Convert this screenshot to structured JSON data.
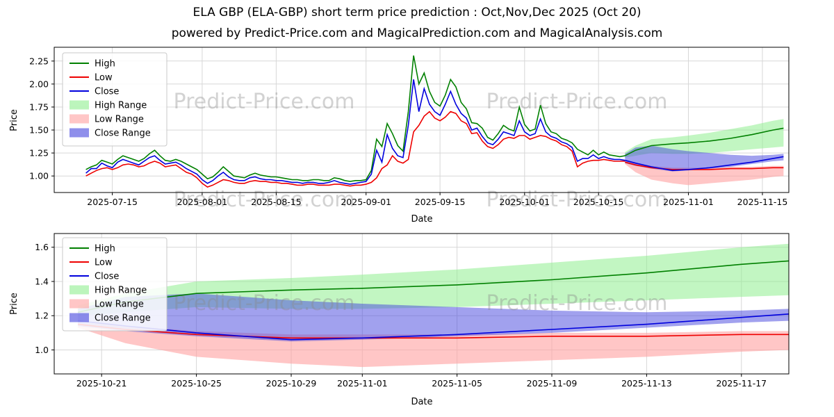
{
  "page": {
    "title": "ELA GBP (ELA-GBP) short term price prediction : Oct,Nov,Dec 2025 (Oct 20)",
    "subtitle": "powered by Predict-Price.com and MagicalPrediction.com and MagicalAnalysis.com"
  },
  "watermark": "Predict-Price.com",
  "colors": {
    "high": "#008000",
    "low": "#ee0000",
    "close": "#0000dd",
    "high_range": "#90ee90",
    "low_range": "#ffa0a0",
    "close_range": "#4444dd"
  },
  "chart_data": [
    {
      "type": "line",
      "title": "",
      "xlabel": "Date",
      "ylabel": "Price",
      "xlim": [
        "2025-07-04",
        "2025-11-20"
      ],
      "ylim": [
        0.82,
        2.4
      ],
      "grid": true,
      "legend_position": "upper-left",
      "xticks": [
        "2025-07-15",
        "2025-08-01",
        "2025-08-15",
        "2025-09-01",
        "2025-09-15",
        "2025-10-01",
        "2025-10-15",
        "2025-11-01",
        "2025-11-15"
      ],
      "yticks": [
        "1.00",
        "1.25",
        "1.50",
        "1.75",
        "2.00",
        "2.25"
      ],
      "legend": [
        {
          "label": "High",
          "type": "line",
          "color": "high"
        },
        {
          "label": "Low",
          "type": "line",
          "color": "low"
        },
        {
          "label": "Close",
          "type": "line",
          "color": "close"
        },
        {
          "label": "High Range",
          "type": "patch",
          "color": "high_range"
        },
        {
          "label": "Low Range",
          "type": "patch",
          "color": "low_range"
        },
        {
          "label": "Close Range",
          "type": "patch",
          "color": "close_range"
        }
      ],
      "history": {
        "dates": [
          "2025-07-10",
          "2025-07-11",
          "2025-07-12",
          "2025-07-13",
          "2025-07-14",
          "2025-07-15",
          "2025-07-16",
          "2025-07-17",
          "2025-07-18",
          "2025-07-19",
          "2025-07-20",
          "2025-07-21",
          "2025-07-22",
          "2025-07-23",
          "2025-07-24",
          "2025-07-25",
          "2025-07-26",
          "2025-07-27",
          "2025-07-28",
          "2025-07-29",
          "2025-07-30",
          "2025-07-31",
          "2025-08-01",
          "2025-08-02",
          "2025-08-03",
          "2025-08-04",
          "2025-08-05",
          "2025-08-06",
          "2025-08-07",
          "2025-08-08",
          "2025-08-09",
          "2025-08-10",
          "2025-08-11",
          "2025-08-12",
          "2025-08-13",
          "2025-08-14",
          "2025-08-15",
          "2025-08-16",
          "2025-08-17",
          "2025-08-18",
          "2025-08-19",
          "2025-08-20",
          "2025-08-21",
          "2025-08-22",
          "2025-08-23",
          "2025-08-24",
          "2025-08-25",
          "2025-08-26",
          "2025-08-27",
          "2025-08-28",
          "2025-08-29",
          "2025-08-30",
          "2025-08-31",
          "2025-09-01",
          "2025-09-02",
          "2025-09-03",
          "2025-09-04",
          "2025-09-05",
          "2025-09-06",
          "2025-09-07",
          "2025-09-08",
          "2025-09-09",
          "2025-09-10",
          "2025-09-11",
          "2025-09-12",
          "2025-09-13",
          "2025-09-14",
          "2025-09-15",
          "2025-09-16",
          "2025-09-17",
          "2025-09-18",
          "2025-09-19",
          "2025-09-20",
          "2025-09-21",
          "2025-09-22",
          "2025-09-23",
          "2025-09-24",
          "2025-09-25",
          "2025-09-26",
          "2025-09-27",
          "2025-09-28",
          "2025-09-29",
          "2025-09-30",
          "2025-10-01",
          "2025-10-02",
          "2025-10-03",
          "2025-10-04",
          "2025-10-05",
          "2025-10-06",
          "2025-10-07",
          "2025-10-08",
          "2025-10-09",
          "2025-10-10",
          "2025-10-11",
          "2025-10-12",
          "2025-10-13",
          "2025-10-14",
          "2025-10-15",
          "2025-10-16",
          "2025-10-17",
          "2025-10-18",
          "2025-10-19",
          "2025-10-20"
        ],
        "high": [
          1.07,
          1.1,
          1.12,
          1.17,
          1.15,
          1.13,
          1.18,
          1.22,
          1.2,
          1.18,
          1.16,
          1.19,
          1.24,
          1.28,
          1.22,
          1.17,
          1.16,
          1.18,
          1.16,
          1.13,
          1.1,
          1.07,
          1.02,
          0.97,
          0.99,
          1.04,
          1.1,
          1.05,
          1.0,
          0.99,
          0.98,
          1.01,
          1.03,
          1.01,
          1.0,
          0.99,
          0.99,
          0.98,
          0.97,
          0.96,
          0.96,
          0.95,
          0.95,
          0.96,
          0.96,
          0.95,
          0.95,
          0.98,
          0.97,
          0.95,
          0.94,
          0.95,
          0.95,
          0.96,
          1.06,
          1.4,
          1.32,
          1.57,
          1.46,
          1.33,
          1.27,
          1.7,
          2.31,
          2.0,
          2.12,
          1.92,
          1.8,
          1.76,
          1.88,
          2.05,
          1.97,
          1.8,
          1.73,
          1.58,
          1.57,
          1.52,
          1.42,
          1.39,
          1.46,
          1.55,
          1.51,
          1.49,
          1.75,
          1.56,
          1.49,
          1.51,
          1.77,
          1.57,
          1.48,
          1.46,
          1.41,
          1.39,
          1.36,
          1.29,
          1.26,
          1.23,
          1.28,
          1.23,
          1.26,
          1.23,
          1.22,
          1.21,
          1.22
        ],
        "low": [
          1.0,
          1.03,
          1.06,
          1.08,
          1.09,
          1.07,
          1.09,
          1.12,
          1.13,
          1.12,
          1.1,
          1.11,
          1.14,
          1.16,
          1.14,
          1.1,
          1.11,
          1.12,
          1.08,
          1.04,
          1.02,
          0.98,
          0.92,
          0.88,
          0.9,
          0.93,
          0.96,
          0.95,
          0.93,
          0.92,
          0.92,
          0.94,
          0.95,
          0.94,
          0.94,
          0.93,
          0.93,
          0.92,
          0.92,
          0.91,
          0.9,
          0.9,
          0.91,
          0.91,
          0.9,
          0.9,
          0.9,
          0.91,
          0.91,
          0.9,
          0.89,
          0.9,
          0.9,
          0.91,
          0.93,
          0.98,
          1.08,
          1.12,
          1.22,
          1.16,
          1.14,
          1.18,
          1.48,
          1.55,
          1.65,
          1.7,
          1.63,
          1.6,
          1.64,
          1.7,
          1.68,
          1.6,
          1.57,
          1.46,
          1.47,
          1.38,
          1.32,
          1.3,
          1.34,
          1.4,
          1.42,
          1.41,
          1.44,
          1.44,
          1.4,
          1.42,
          1.44,
          1.43,
          1.4,
          1.38,
          1.34,
          1.32,
          1.27,
          1.1,
          1.14,
          1.16,
          1.17,
          1.17,
          1.18,
          1.17,
          1.16,
          1.16,
          1.16
        ],
        "close": [
          1.03,
          1.08,
          1.08,
          1.14,
          1.11,
          1.09,
          1.15,
          1.18,
          1.16,
          1.14,
          1.12,
          1.16,
          1.2,
          1.22,
          1.17,
          1.13,
          1.14,
          1.15,
          1.12,
          1.08,
          1.05,
          1.02,
          0.96,
          0.92,
          0.95,
          1.0,
          1.04,
          0.99,
          0.96,
          0.95,
          0.95,
          0.98,
          0.99,
          0.97,
          0.96,
          0.96,
          0.95,
          0.95,
          0.94,
          0.93,
          0.93,
          0.92,
          0.93,
          0.93,
          0.92,
          0.92,
          0.93,
          0.95,
          0.93,
          0.92,
          0.91,
          0.92,
          0.93,
          0.94,
          1.02,
          1.28,
          1.15,
          1.45,
          1.3,
          1.22,
          1.2,
          1.55,
          2.05,
          1.7,
          1.95,
          1.78,
          1.7,
          1.66,
          1.78,
          1.92,
          1.78,
          1.68,
          1.63,
          1.5,
          1.52,
          1.43,
          1.36,
          1.34,
          1.4,
          1.48,
          1.46,
          1.44,
          1.6,
          1.48,
          1.44,
          1.46,
          1.62,
          1.48,
          1.43,
          1.41,
          1.37,
          1.35,
          1.31,
          1.16,
          1.19,
          1.19,
          1.23,
          1.19,
          1.21,
          1.19,
          1.18,
          1.18,
          1.17
        ]
      },
      "forecast": {
        "dates": [
          "2025-10-20",
          "2025-10-22",
          "2025-10-25",
          "2025-10-29",
          "2025-11-01",
          "2025-11-05",
          "2025-11-09",
          "2025-11-13",
          "2025-11-17",
          "2025-11-19"
        ],
        "high": [
          1.22,
          1.28,
          1.33,
          1.35,
          1.36,
          1.38,
          1.41,
          1.45,
          1.5,
          1.52
        ],
        "high_upper": [
          1.26,
          1.33,
          1.4,
          1.42,
          1.44,
          1.47,
          1.51,
          1.55,
          1.6,
          1.62
        ],
        "high_lower": [
          1.2,
          1.22,
          1.25,
          1.24,
          1.24,
          1.25,
          1.27,
          1.29,
          1.31,
          1.32
        ],
        "close": [
          1.17,
          1.14,
          1.1,
          1.06,
          1.07,
          1.09,
          1.12,
          1.15,
          1.19,
          1.21
        ],
        "close_upper": [
          1.24,
          1.31,
          1.33,
          1.29,
          1.27,
          1.25,
          1.23,
          1.22,
          1.23,
          1.24
        ],
        "close_lower": [
          1.14,
          1.11,
          1.08,
          1.05,
          1.06,
          1.08,
          1.1,
          1.13,
          1.16,
          1.17
        ],
        "low": [
          1.15,
          1.12,
          1.09,
          1.07,
          1.07,
          1.07,
          1.08,
          1.08,
          1.09,
          1.09
        ],
        "low_upper": [
          1.16,
          1.14,
          1.11,
          1.09,
          1.09,
          1.09,
          1.1,
          1.1,
          1.11,
          1.11
        ],
        "low_lower": [
          1.13,
          1.04,
          0.96,
          0.92,
          0.9,
          0.92,
          0.94,
          0.96,
          0.99,
          1.0
        ]
      }
    },
    {
      "type": "line",
      "title": "",
      "xlabel": "Date",
      "ylabel": "Price",
      "xlim": [
        "2025-10-19",
        "2025-11-19"
      ],
      "ylim": [
        0.86,
        1.68
      ],
      "grid": true,
      "legend_position": "upper-left",
      "xticks": [
        "2025-10-21",
        "2025-10-25",
        "2025-10-29",
        "2025-11-01",
        "2025-11-05",
        "2025-11-09",
        "2025-11-13",
        "2025-11-17"
      ],
      "yticks": [
        "1.0",
        "1.2",
        "1.4",
        "1.6"
      ],
      "legend": [
        {
          "label": "High",
          "type": "line",
          "color": "high"
        },
        {
          "label": "Low",
          "type": "line",
          "color": "low"
        },
        {
          "label": "Close",
          "type": "line",
          "color": "close"
        },
        {
          "label": "High Range",
          "type": "patch",
          "color": "high_range"
        },
        {
          "label": "Low Range",
          "type": "patch",
          "color": "low_range"
        },
        {
          "label": "Close Range",
          "type": "patch",
          "color": "close_range"
        }
      ],
      "forecast": {
        "dates": [
          "2025-10-20",
          "2025-10-22",
          "2025-10-25",
          "2025-10-29",
          "2025-11-01",
          "2025-11-05",
          "2025-11-09",
          "2025-11-13",
          "2025-11-17",
          "2025-11-19"
        ],
        "high": [
          1.22,
          1.28,
          1.33,
          1.35,
          1.36,
          1.38,
          1.41,
          1.45,
          1.5,
          1.52
        ],
        "high_upper": [
          1.26,
          1.33,
          1.4,
          1.42,
          1.44,
          1.47,
          1.51,
          1.55,
          1.6,
          1.62
        ],
        "high_lower": [
          1.2,
          1.22,
          1.25,
          1.24,
          1.24,
          1.25,
          1.27,
          1.29,
          1.31,
          1.32
        ],
        "close": [
          1.17,
          1.14,
          1.1,
          1.06,
          1.07,
          1.09,
          1.12,
          1.15,
          1.19,
          1.21
        ],
        "close_upper": [
          1.24,
          1.31,
          1.33,
          1.29,
          1.27,
          1.25,
          1.23,
          1.22,
          1.23,
          1.24
        ],
        "close_lower": [
          1.14,
          1.11,
          1.08,
          1.05,
          1.06,
          1.08,
          1.1,
          1.13,
          1.16,
          1.17
        ],
        "low": [
          1.15,
          1.12,
          1.09,
          1.07,
          1.07,
          1.07,
          1.08,
          1.08,
          1.09,
          1.09
        ],
        "low_upper": [
          1.16,
          1.14,
          1.11,
          1.09,
          1.09,
          1.09,
          1.1,
          1.1,
          1.11,
          1.11
        ],
        "low_lower": [
          1.13,
          1.04,
          0.96,
          0.92,
          0.9,
          0.92,
          0.94,
          0.96,
          0.99,
          1.0
        ]
      }
    }
  ]
}
